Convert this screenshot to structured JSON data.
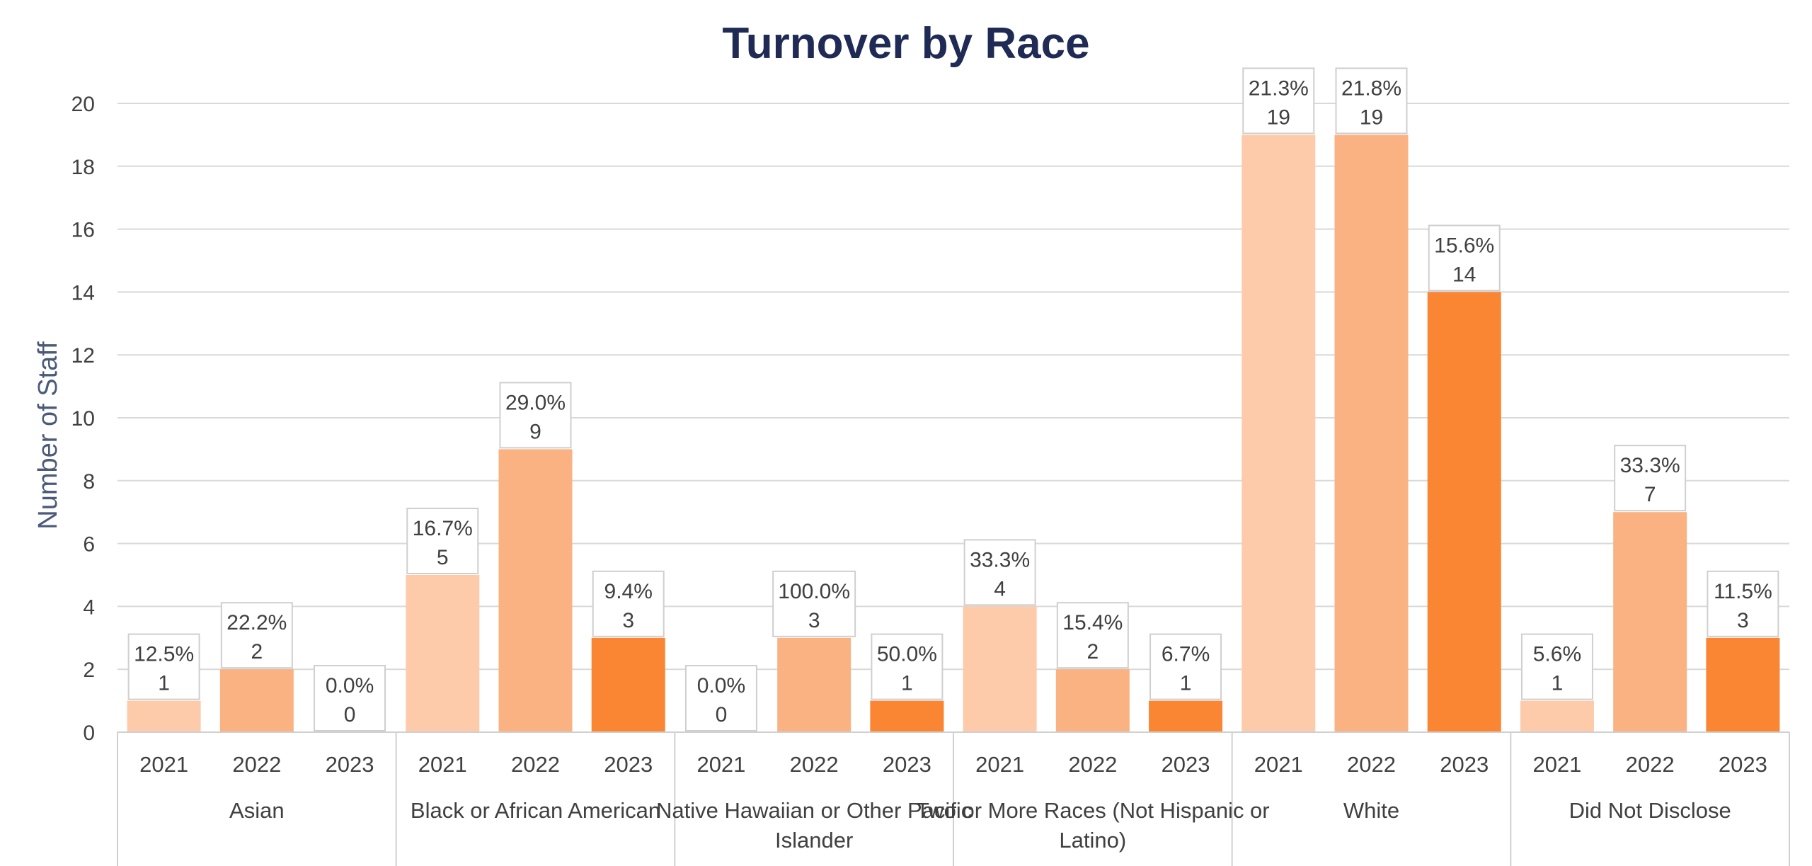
{
  "chart_data": {
    "type": "bar",
    "title": "Turnover by Race",
    "ylabel": "Number of Staff",
    "ylim": [
      0,
      20
    ],
    "yticks": [
      0,
      2,
      4,
      6,
      8,
      10,
      12,
      14,
      16,
      18,
      20
    ],
    "grid": true,
    "series_colors": {
      "2021": "#fdcbaa",
      "2022": "#fbb282",
      "2023": "#fa8533"
    },
    "groups": [
      {
        "label": "Asian",
        "bars": [
          {
            "year": "2021",
            "value": 1,
            "pct": "12.5%"
          },
          {
            "year": "2022",
            "value": 2,
            "pct": "22.2%"
          },
          {
            "year": "2023",
            "value": 0,
            "pct": "0.0%"
          }
        ]
      },
      {
        "label": "Black or African American",
        "bars": [
          {
            "year": "2021",
            "value": 5,
            "pct": "16.7%"
          },
          {
            "year": "2022",
            "value": 9,
            "pct": "29.0%"
          },
          {
            "year": "2023",
            "value": 3,
            "pct": "9.4%"
          }
        ]
      },
      {
        "label": "Native Hawaiian or Other Pacific Islander",
        "bars": [
          {
            "year": "2021",
            "value": 0,
            "pct": "0.0%"
          },
          {
            "year": "2022",
            "value": 3,
            "pct": "100.0%"
          },
          {
            "year": "2023",
            "value": 1,
            "pct": "50.0%"
          }
        ]
      },
      {
        "label": "Two or More Races (Not Hispanic or Latino)",
        "bars": [
          {
            "year": "2021",
            "value": 4,
            "pct": "33.3%"
          },
          {
            "year": "2022",
            "value": 2,
            "pct": "15.4%"
          },
          {
            "year": "2023",
            "value": 1,
            "pct": "6.7%"
          }
        ]
      },
      {
        "label": "White",
        "bars": [
          {
            "year": "2021",
            "value": 19,
            "pct": "21.3%"
          },
          {
            "year": "2022",
            "value": 19,
            "pct": "21.8%"
          },
          {
            "year": "2023",
            "value": 14,
            "pct": "15.6%"
          }
        ]
      },
      {
        "label": "Did Not Disclose",
        "bars": [
          {
            "year": "2021",
            "value": 1,
            "pct": "5.6%"
          },
          {
            "year": "2022",
            "value": 7,
            "pct": "33.3%"
          },
          {
            "year": "2023",
            "value": 3,
            "pct": "11.5%"
          }
        ]
      }
    ]
  }
}
